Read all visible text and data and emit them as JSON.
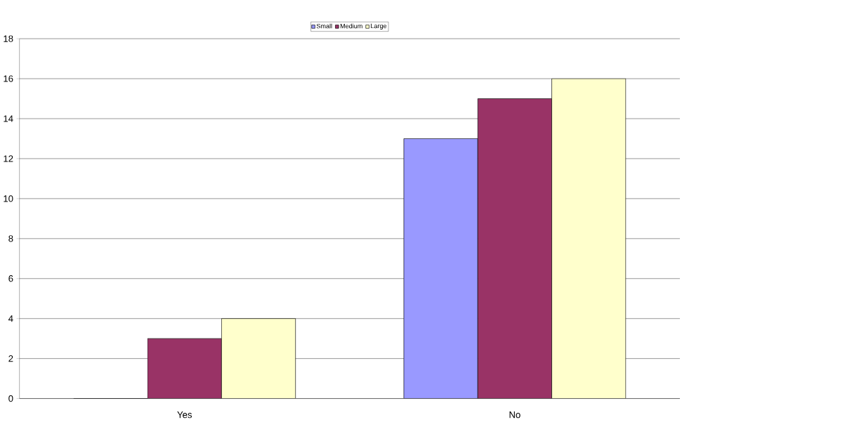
{
  "chart_data": {
    "type": "bar",
    "categories": [
      "Yes",
      "No"
    ],
    "series": [
      {
        "name": "Small",
        "color": "#9999ff",
        "values": [
          0,
          13
        ]
      },
      {
        "name": "Medium",
        "color": "#993366",
        "values": [
          3,
          15
        ]
      },
      {
        "name": "Large",
        "color": "#ffffcc",
        "values": [
          4,
          16
        ]
      }
    ],
    "ylim": [
      0,
      18
    ],
    "yticks": [
      0,
      2,
      4,
      6,
      8,
      10,
      12,
      14,
      16,
      18
    ],
    "grid": "y",
    "legend": "top"
  }
}
